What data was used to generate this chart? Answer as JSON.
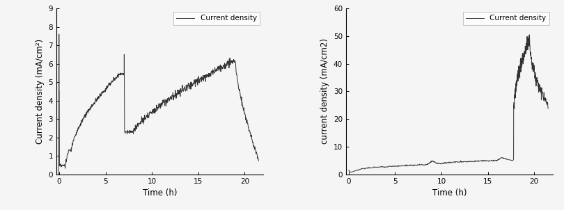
{
  "left": {
    "ylabel": "Current density (mA/cm²)",
    "xlabel": "Time (h)",
    "legend_label": "Current density",
    "xlim": [
      -0.3,
      22
    ],
    "ylim": [
      0,
      9
    ],
    "yticks": [
      0,
      1,
      2,
      3,
      4,
      5,
      6,
      7,
      8,
      9
    ],
    "xticks": [
      0,
      5,
      10,
      15,
      20
    ],
    "line_color": "#333333",
    "line_width": 0.7
  },
  "right": {
    "ylabel": "current density (mA/cm2)",
    "xlabel": "Time (h)",
    "legend_label": "Current density",
    "xlim": [
      -0.3,
      22
    ],
    "ylim": [
      0,
      60
    ],
    "yticks": [
      0,
      10,
      20,
      30,
      40,
      50,
      60
    ],
    "xticks": [
      0,
      5,
      10,
      15,
      20
    ],
    "line_color": "#333333",
    "line_width": 0.7
  },
  "background_color": "#f5f5f5",
  "font_size": 8.5,
  "legend_fontsize": 7.5
}
